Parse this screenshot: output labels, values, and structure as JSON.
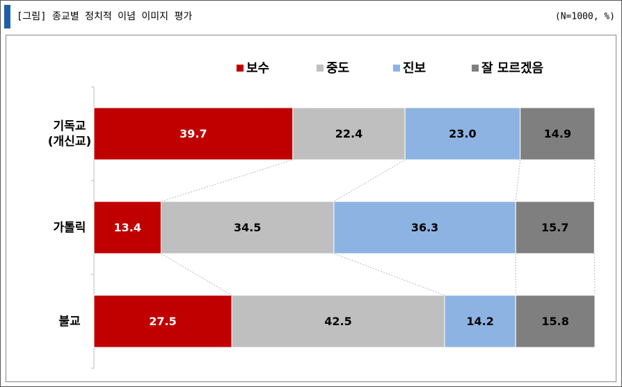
{
  "chart_data": {
    "type": "stacked-bar-horizontal",
    "title": "[그림] 종교별 정치적 이념 이미지 평가",
    "note": "(N=1000, %)",
    "categories": [
      "기독교\n(개신교)",
      "가톨릭",
      "불교"
    ],
    "series": [
      {
        "name": "보수",
        "color": "#c00000",
        "values": [
          39.7,
          13.4,
          27.5
        ]
      },
      {
        "name": "중도",
        "color": "#bfbfbf",
        "values": [
          22.4,
          34.5,
          42.5
        ]
      },
      {
        "name": "진보",
        "color": "#8db3e2",
        "values": [
          23.0,
          36.3,
          14.2
        ],
        "value_labels": [
          "23.0",
          "36.3",
          "14.2"
        ]
      },
      {
        "name": "잘 모르겠음",
        "color": "#7f7f7f",
        "values": [
          14.9,
          15.7,
          15.8
        ]
      }
    ],
    "xlim": [
      0,
      100
    ]
  }
}
